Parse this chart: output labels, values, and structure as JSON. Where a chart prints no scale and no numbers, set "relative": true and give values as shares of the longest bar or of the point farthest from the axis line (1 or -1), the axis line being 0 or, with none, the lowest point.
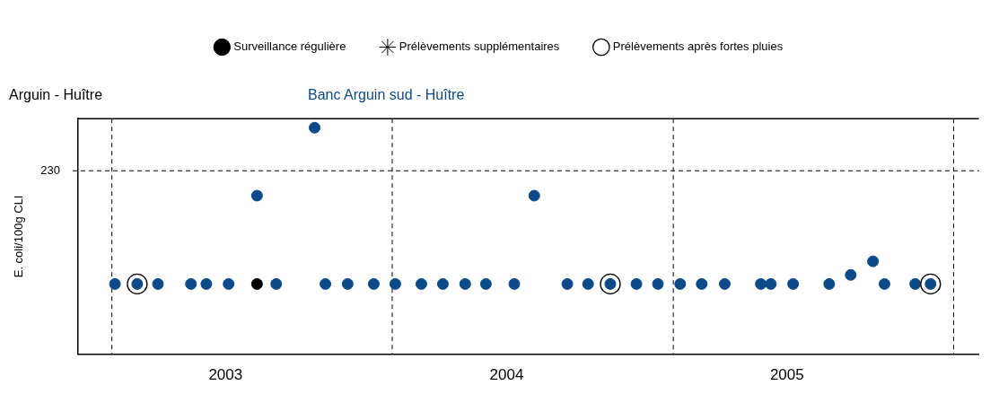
{
  "chart_data": {
    "type": "scatter",
    "title": "Arguin - Huître",
    "ylabel": "E. coli/100g CLI",
    "relative": true,
    "legend": "top",
    "tick_labels": "x",
    "annotations": [
      "230"
    ],
    "xlim": [
      "2002-11-18",
      "2006-02-03"
    ],
    "xticks": [
      {
        "value": "2003-05-29",
        "label": "2003"
      },
      {
        "value": "2004-05-29",
        "label": "2004"
      },
      {
        "value": "2005-05-29",
        "label": "2005"
      }
    ],
    "ref_lines": [
      {
        "axis": "y",
        "value": 0.81,
        "line_style": "dashed"
      },
      {
        "axis": "x",
        "value": "2003-01-01",
        "line_style": "dashed"
      },
      {
        "axis": "x",
        "value": "2004-01-01",
        "line_style": "dashed"
      },
      {
        "axis": "x",
        "value": "2005-01-01",
        "line_style": "dashed"
      },
      {
        "axis": "x",
        "value": "2006-01-01",
        "line_style": "dashed"
      }
    ],
    "series": [
      {
        "name": "Banc Arguin sud - Huître",
        "color": "#0d4a8a",
        "marker": "circle",
        "x": [
          "2003-01-05",
          "2003-02-03",
          "2003-03-02",
          "2003-04-14",
          "2003-05-04",
          "2003-06-02",
          "2003-07-09",
          "2003-08-03",
          "2003-09-22",
          "2003-10-06",
          "2003-11-04",
          "2003-12-08",
          "2004-01-05",
          "2004-02-08",
          "2004-03-07",
          "2004-04-05",
          "2004-05-02",
          "2004-06-08",
          "2004-07-04",
          "2004-08-16",
          "2004-09-12",
          "2004-10-11",
          "2004-11-14",
          "2004-12-12",
          "2005-01-10",
          "2005-02-07",
          "2005-03-09",
          "2005-04-25",
          "2005-05-08",
          "2005-06-06",
          "2005-07-23",
          "2005-08-20",
          "2005-09-18",
          "2005-10-03",
          "2005-11-12",
          "2005-12-02"
        ],
        "values": [
          0.31,
          0.31,
          0.31,
          0.31,
          0.31,
          0.31,
          0.7,
          0.31,
          1,
          0.31,
          0.31,
          0.31,
          0.31,
          0.31,
          0.31,
          0.31,
          0.31,
          0.31,
          0.7,
          0.31,
          0.31,
          0.31,
          0.31,
          0.31,
          0.31,
          0.31,
          0.31,
          0.31,
          0.31,
          0.31,
          0.31,
          0.35,
          0.41,
          0.31,
          0.31,
          0.31
        ]
      },
      {
        "name": "Surveillance régulière",
        "color": "#000000",
        "marker": "circle",
        "x": [
          "2003-07-09"
        ],
        "values": [
          0.31
        ]
      },
      {
        "name": "Prélèvements supplémentaires",
        "color": "#000000",
        "marker": "star"
      },
      {
        "name": "Prélèvements après fortes pluies",
        "color": "#000000",
        "marker": "circle",
        "x": [
          "2003-02-03",
          "2004-10-11",
          "2005-12-02"
        ],
        "values": [
          0.31,
          0.31,
          0.31
        ]
      }
    ]
  }
}
